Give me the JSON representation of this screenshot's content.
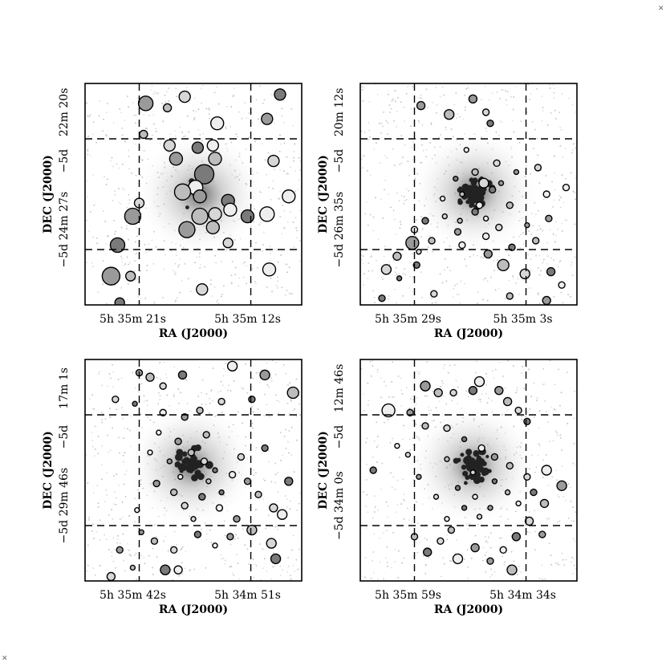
{
  "chart_data": [
    {
      "type": "scatter",
      "xlabel": "RA (J2000)",
      "ylabel": "DEC (J2000)",
      "xticks": [
        "5h 35m 21s",
        "5h 35m 12s"
      ],
      "yticks": [
        "−5d 24m 27s",
        "22m 20s"
      ],
      "grid": true,
      "sources": [
        [
          0.28,
          0.09,
          9
        ],
        [
          0.38,
          0.11,
          5
        ],
        [
          0.46,
          0.06,
          7
        ],
        [
          0.9,
          0.05,
          7
        ],
        [
          0.61,
          0.18,
          8
        ],
        [
          0.84,
          0.16,
          7
        ],
        [
          0.27,
          0.23,
          5
        ],
        [
          0.39,
          0.28,
          7
        ],
        [
          0.52,
          0.29,
          7
        ],
        [
          0.59,
          0.28,
          7
        ],
        [
          0.42,
          0.34,
          8
        ],
        [
          0.6,
          0.34,
          8
        ],
        [
          0.87,
          0.35,
          7
        ],
        [
          0.55,
          0.41,
          12
        ],
        [
          0.51,
          0.47,
          9
        ],
        [
          0.53,
          0.51,
          8
        ],
        [
          0.45,
          0.49,
          10
        ],
        [
          0.25,
          0.54,
          6
        ],
        [
          0.66,
          0.53,
          8
        ],
        [
          0.67,
          0.57,
          8
        ],
        [
          0.22,
          0.6,
          10
        ],
        [
          0.53,
          0.6,
          10
        ],
        [
          0.6,
          0.59,
          8
        ],
        [
          0.75,
          0.6,
          8
        ],
        [
          0.84,
          0.59,
          9
        ],
        [
          0.47,
          0.66,
          10
        ],
        [
          0.59,
          0.65,
          8
        ],
        [
          0.66,
          0.72,
          6
        ],
        [
          0.15,
          0.73,
          9
        ],
        [
          0.85,
          0.84,
          8
        ],
        [
          0.12,
          0.87,
          11
        ],
        [
          0.21,
          0.87,
          6
        ],
        [
          0.54,
          0.93,
          7
        ],
        [
          0.16,
          0.99,
          6
        ],
        [
          0.94,
          0.51,
          8
        ]
      ]
    },
    {
      "type": "scatter",
      "xlabel": "RA (J2000)",
      "ylabel": "DEC (J2000)",
      "xticks": [
        "5h 35m 29s",
        "5h 35m 3s"
      ],
      "yticks": [
        "−5d 26m 35s",
        "20m 12s"
      ],
      "grid": true,
      "sources": [
        [
          0.52,
          0.07,
          5
        ],
        [
          0.41,
          0.14,
          6
        ],
        [
          0.58,
          0.13,
          4
        ],
        [
          0.6,
          0.18,
          4
        ],
        [
          0.49,
          0.3,
          3
        ],
        [
          0.28,
          0.1,
          5
        ],
        [
          0.53,
          0.4,
          4
        ],
        [
          0.57,
          0.45,
          6
        ],
        [
          0.61,
          0.48,
          4
        ],
        [
          0.55,
          0.55,
          4
        ],
        [
          0.65,
          0.45,
          3
        ],
        [
          0.47,
          0.5,
          3
        ],
        [
          0.63,
          0.36,
          4
        ],
        [
          0.44,
          0.43,
          3
        ],
        [
          0.38,
          0.52,
          3
        ],
        [
          0.72,
          0.4,
          3
        ],
        [
          0.69,
          0.55,
          4
        ],
        [
          0.39,
          0.6,
          3
        ],
        [
          0.3,
          0.62,
          4
        ],
        [
          0.25,
          0.66,
          4
        ],
        [
          0.24,
          0.72,
          8
        ],
        [
          0.17,
          0.78,
          5
        ],
        [
          0.12,
          0.84,
          6
        ],
        [
          0.26,
          0.82,
          4
        ],
        [
          0.47,
          0.73,
          4
        ],
        [
          0.59,
          0.77,
          5
        ],
        [
          0.66,
          0.82,
          7
        ],
        [
          0.76,
          0.86,
          6
        ],
        [
          0.88,
          0.85,
          5
        ],
        [
          0.93,
          0.91,
          4
        ],
        [
          0.86,
          0.98,
          5
        ],
        [
          0.69,
          0.96,
          4
        ],
        [
          0.34,
          0.95,
          4
        ],
        [
          0.1,
          0.97,
          4
        ],
        [
          0.86,
          0.5,
          4
        ],
        [
          0.87,
          0.61,
          4
        ],
        [
          0.81,
          0.71,
          4
        ],
        [
          0.82,
          0.38,
          4
        ],
        [
          0.7,
          0.74,
          4
        ],
        [
          0.58,
          0.69,
          4
        ],
        [
          0.45,
          0.67,
          4
        ],
        [
          0.33,
          0.71,
          4
        ],
        [
          0.27,
          0.76,
          3
        ],
        [
          0.18,
          0.88,
          3
        ],
        [
          0.95,
          0.47,
          4
        ],
        [
          0.77,
          0.64,
          3
        ],
        [
          0.46,
          0.62,
          3
        ],
        [
          0.64,
          0.65,
          4
        ],
        [
          0.53,
          0.58,
          4
        ],
        [
          0.58,
          0.61,
          3
        ]
      ]
    },
    {
      "type": "scatter",
      "xlabel": "RA (J2000)",
      "ylabel": "DEC (J2000)",
      "xticks": [
        "5h 35m 42s",
        "5h 34m 51s"
      ],
      "yticks": [
        "−5d 29m 46s",
        "17m 1s"
      ],
      "grid": true,
      "sources": [
        [
          0.25,
          0.06,
          4
        ],
        [
          0.3,
          0.08,
          5
        ],
        [
          0.36,
          0.12,
          4
        ],
        [
          0.45,
          0.07,
          5
        ],
        [
          0.68,
          0.03,
          6
        ],
        [
          0.83,
          0.07,
          6
        ],
        [
          0.96,
          0.15,
          7
        ],
        [
          0.14,
          0.18,
          4
        ],
        [
          0.23,
          0.2,
          3
        ],
        [
          0.36,
          0.24,
          4
        ],
        [
          0.46,
          0.26,
          4
        ],
        [
          0.53,
          0.23,
          4
        ],
        [
          0.63,
          0.19,
          4
        ],
        [
          0.77,
          0.18,
          4
        ],
        [
          0.34,
          0.33,
          3
        ],
        [
          0.43,
          0.37,
          4
        ],
        [
          0.49,
          0.42,
          4
        ],
        [
          0.55,
          0.46,
          4
        ],
        [
          0.6,
          0.5,
          3
        ],
        [
          0.68,
          0.52,
          4
        ],
        [
          0.75,
          0.55,
          4
        ],
        [
          0.8,
          0.61,
          4
        ],
        [
          0.87,
          0.67,
          5
        ],
        [
          0.94,
          0.55,
          5
        ],
        [
          0.91,
          0.7,
          6
        ],
        [
          0.33,
          0.56,
          4
        ],
        [
          0.41,
          0.6,
          4
        ],
        [
          0.46,
          0.66,
          4
        ],
        [
          0.54,
          0.62,
          4
        ],
        [
          0.62,
          0.67,
          4
        ],
        [
          0.7,
          0.72,
          4
        ],
        [
          0.77,
          0.77,
          6
        ],
        [
          0.86,
          0.83,
          6
        ],
        [
          0.88,
          0.9,
          6
        ],
        [
          0.24,
          0.68,
          3
        ],
        [
          0.26,
          0.78,
          3
        ],
        [
          0.32,
          0.82,
          4
        ],
        [
          0.41,
          0.86,
          4
        ],
        [
          0.37,
          0.95,
          6
        ],
        [
          0.43,
          0.95,
          5
        ],
        [
          0.16,
          0.86,
          4
        ],
        [
          0.22,
          0.94,
          3
        ],
        [
          0.12,
          0.98,
          5
        ],
        [
          0.52,
          0.79,
          4
        ],
        [
          0.6,
          0.84,
          3
        ],
        [
          0.67,
          0.8,
          4
        ],
        [
          0.57,
          0.55,
          3
        ],
        [
          0.5,
          0.72,
          3
        ],
        [
          0.63,
          0.6,
          3
        ],
        [
          0.44,
          0.53,
          3
        ],
        [
          0.39,
          0.46,
          3
        ],
        [
          0.56,
          0.34,
          4
        ],
        [
          0.72,
          0.44,
          4
        ],
        [
          0.83,
          0.4,
          4
        ],
        [
          0.3,
          0.42,
          3
        ]
      ]
    },
    {
      "type": "scatter",
      "xlabel": "RA (J2000)",
      "ylabel": "DEC (J2000)",
      "xticks": [
        "5h 35m 59s",
        "5h 34m 34s"
      ],
      "yticks": [
        "−5d 34m 0s",
        "12m 46s"
      ],
      "grid": true,
      "sources": [
        [
          0.3,
          0.12,
          6
        ],
        [
          0.36,
          0.15,
          5
        ],
        [
          0.43,
          0.15,
          4
        ],
        [
          0.52,
          0.14,
          5
        ],
        [
          0.55,
          0.1,
          6
        ],
        [
          0.64,
          0.14,
          5
        ],
        [
          0.68,
          0.19,
          5
        ],
        [
          0.73,
          0.23,
          4
        ],
        [
          0.77,
          0.28,
          4
        ],
        [
          0.13,
          0.23,
          8
        ],
        [
          0.23,
          0.24,
          4
        ],
        [
          0.3,
          0.3,
          4
        ],
        [
          0.4,
          0.31,
          4
        ],
        [
          0.48,
          0.36,
          3
        ],
        [
          0.56,
          0.4,
          4
        ],
        [
          0.62,
          0.44,
          4
        ],
        [
          0.69,
          0.48,
          4
        ],
        [
          0.77,
          0.53,
          4
        ],
        [
          0.8,
          0.6,
          4
        ],
        [
          0.86,
          0.5,
          6
        ],
        [
          0.93,
          0.57,
          6
        ],
        [
          0.85,
          0.65,
          5
        ],
        [
          0.78,
          0.73,
          5
        ],
        [
          0.72,
          0.8,
          5
        ],
        [
          0.66,
          0.86,
          4
        ],
        [
          0.6,
          0.91,
          4
        ],
        [
          0.42,
          0.77,
          4
        ],
        [
          0.37,
          0.82,
          4
        ],
        [
          0.31,
          0.87,
          5
        ],
        [
          0.45,
          0.9,
          6
        ],
        [
          0.53,
          0.85,
          5
        ],
        [
          0.25,
          0.8,
          4
        ],
        [
          0.35,
          0.62,
          3
        ],
        [
          0.45,
          0.58,
          3
        ],
        [
          0.53,
          0.62,
          3
        ],
        [
          0.6,
          0.67,
          3
        ],
        [
          0.68,
          0.6,
          3
        ],
        [
          0.22,
          0.43,
          3
        ],
        [
          0.06,
          0.5,
          4
        ],
        [
          0.17,
          0.39,
          3
        ],
        [
          0.27,
          0.53,
          3
        ],
        [
          0.4,
          0.45,
          3
        ],
        [
          0.52,
          0.51,
          3
        ],
        [
          0.62,
          0.55,
          3
        ],
        [
          0.73,
          0.65,
          3
        ],
        [
          0.84,
          0.79,
          4
        ],
        [
          0.7,
          0.95,
          6
        ],
        [
          0.55,
          0.71,
          3
        ],
        [
          0.48,
          0.67,
          3
        ],
        [
          0.4,
          0.72,
          3
        ]
      ]
    }
  ]
}
